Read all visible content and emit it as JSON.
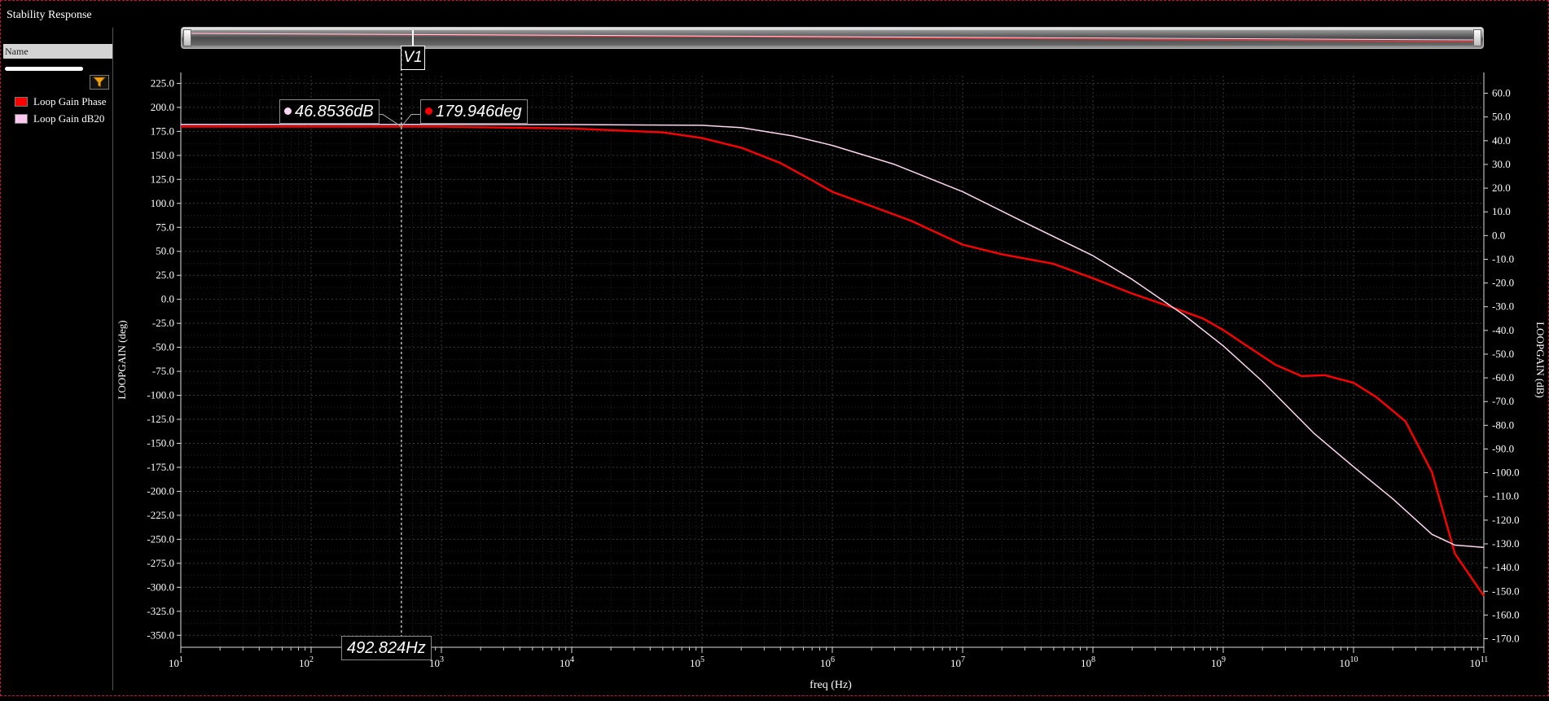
{
  "window": {
    "title": "Stability Response"
  },
  "sidebar": {
    "name_header": "Name",
    "filter_icon": "funnel-icon",
    "legend": [
      {
        "label": "Loop Gain Phase",
        "color": "#ff0000"
      },
      {
        "label": "Loop Gain dB20",
        "color": "#ffc8f0"
      }
    ]
  },
  "cursor": {
    "name": "V1",
    "x_readout": "492.824Hz",
    "markers": [
      {
        "label": "46.8536dB",
        "color": "#ffc8f0"
      },
      {
        "label": "179.946deg",
        "color": "#ff0000"
      }
    ]
  },
  "colors": {
    "background": "#000000",
    "grid": "#3a3a3a",
    "phase": "#ff0000",
    "gain": "#ffd6f2",
    "frame": "#d0103a"
  },
  "chart_data": {
    "type": "line",
    "xlabel": "freq (Hz)",
    "ylabel_left": "LOOPGAIN (deg)",
    "ylabel_right": "LOOPGAIN (dB)",
    "x_scale": "log",
    "xlim": [
      10,
      100000000000
    ],
    "x_ticks": [
      {
        "base": "10",
        "exp": "1"
      },
      {
        "base": "10",
        "exp": "2"
      },
      {
        "base": "10",
        "exp": "3"
      },
      {
        "base": "10",
        "exp": "4"
      },
      {
        "base": "10",
        "exp": "5"
      },
      {
        "base": "10",
        "exp": "6"
      },
      {
        "base": "10",
        "exp": "7"
      },
      {
        "base": "10",
        "exp": "8"
      },
      {
        "base": "10",
        "exp": "9"
      },
      {
        "base": "10",
        "exp": "10"
      },
      {
        "base": "10",
        "exp": "11"
      }
    ],
    "y_left": {
      "lim": [
        -362.5,
        233
      ],
      "ticks": [
        "225.0",
        "200.0",
        "175.0",
        "150.0",
        "125.0",
        "100.0",
        "75.0",
        "50.0",
        "25.0",
        "0.0",
        "-25.0",
        "-50.0",
        "-75.0",
        "-100.0",
        "-125.0",
        "-150.0",
        "-175.0",
        "-200.0",
        "-225.0",
        "-250.0",
        "-275.0",
        "-300.0",
        "-325.0",
        "-350.0"
      ]
    },
    "y_right": {
      "lim": [
        -173.6,
        67.4
      ],
      "ticks": [
        "60.0",
        "50.0",
        "40.0",
        "30.0",
        "20.0",
        "10.0",
        "0.0",
        "-10.0",
        "-20.0",
        "-30.0",
        "-40.0",
        "-50.0",
        "-60.0",
        "-70.0",
        "-80.0",
        "-90.0",
        "-100.0",
        "-110.0",
        "-120.0",
        "-130.0",
        "-140.0",
        "-150.0",
        "-160.0",
        "-170.0"
      ]
    },
    "grid": true,
    "series": [
      {
        "name": "Loop Gain Phase",
        "axis": "left",
        "color": "#ff0000",
        "x": [
          10,
          1000,
          10000,
          50000,
          100000,
          200000,
          400000,
          700000,
          1000000,
          2000000,
          4000000,
          10000000,
          20000000,
          50000000,
          100000000,
          200000000,
          400000000,
          700000000,
          1000000000,
          1500000000,
          2500000000,
          4000000000,
          6000000000,
          10000000000,
          15000000000,
          25000000000,
          40000000000,
          60000000000,
          100000000000
        ],
        "y": [
          180,
          179.9,
          178,
          174,
          168,
          158,
          142,
          124,
          112,
          97,
          82,
          57,
          47,
          37,
          22,
          6,
          -8,
          -20,
          -32,
          -48,
          -68,
          -80,
          -79,
          -87,
          -102,
          -127,
          -180,
          -265,
          -309
        ]
      },
      {
        "name": "Loop Gain dB20",
        "axis": "right",
        "color": "#ffd6f2",
        "x": [
          10,
          1000,
          10000,
          100000,
          200000,
          500000,
          1000000,
          3000000,
          10000000,
          30000000,
          100000000,
          200000000,
          500000000,
          1000000000,
          2000000000,
          5000000000,
          10000000000,
          20000000000,
          40000000000,
          60000000000,
          100000000000
        ],
        "y": [
          46.85,
          46.85,
          46.8,
          46.5,
          45.5,
          42,
          38,
          30,
          18.5,
          5.5,
          -8.5,
          -18.5,
          -33.5,
          -46.5,
          -61.5,
          -83.5,
          -97.5,
          -111,
          -126,
          -130.5,
          -131.5
        ]
      }
    ]
  }
}
